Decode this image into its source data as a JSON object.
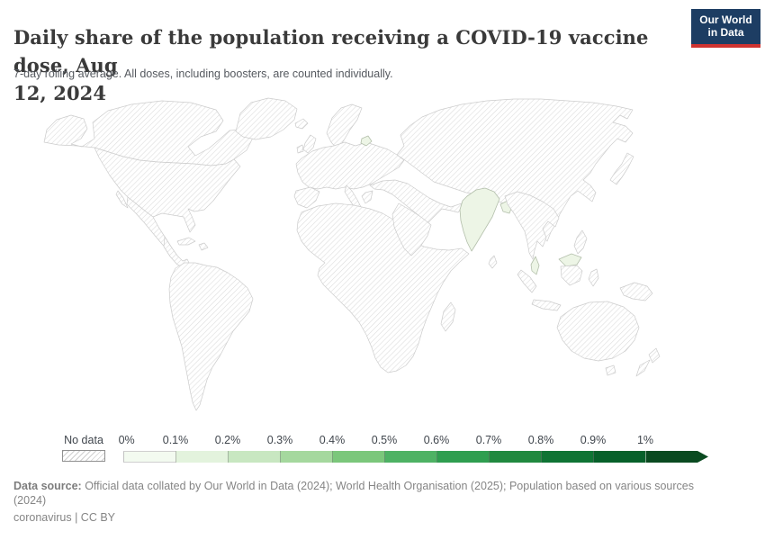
{
  "header": {
    "title_line1": "Daily share of the population receiving a COVID-19 vaccine dose, Aug",
    "title_line2": "12, 2024",
    "full_title": "Daily share of the population receiving a COVID-19 vaccine dose, Aug 12, 2024",
    "subtitle": "7-day rolling average. All doses, including boosters, are counted individually.",
    "logo": {
      "line1": "Our World",
      "line2": "in Data",
      "bg_color": "#1d3d63",
      "accent_color": "#cf3330"
    }
  },
  "legend": {
    "no_data_label": "No data",
    "tick_labels": [
      "0%",
      "0.1%",
      "0.2%",
      "0.3%",
      "0.4%",
      "0.5%",
      "0.6%",
      "0.7%",
      "0.8%",
      "0.9%",
      "1%"
    ],
    "segment_colors": [
      "#f3faf0",
      "#e3f3dd",
      "#c8e7c1",
      "#a5d89e",
      "#7bc77b",
      "#4eb264",
      "#2f9e50",
      "#20893f",
      "#0f7434",
      "#07602a",
      "#0a4a20"
    ]
  },
  "map": {
    "highlight_fill": "#edf5e6",
    "no_data_style": "diagonal-hatch"
  },
  "chart_data": {
    "type": "heatmap",
    "subtype": "world-choropleth-map",
    "title": "Daily share of the population receiving a COVID-19 vaccine dose, Aug 12, 2024",
    "date": "Aug 12, 2024",
    "unit": "%",
    "color_scale": {
      "bin_edges_percent": [
        0,
        0.1,
        0.2,
        0.3,
        0.4,
        0.5,
        0.6,
        0.7,
        0.8,
        0.9,
        1
      ],
      "open_ended_above": "1%",
      "colors": [
        "#f3faf0",
        "#e3f3dd",
        "#c8e7c1",
        "#a5d89e",
        "#7bc77b",
        "#4eb264",
        "#2f9e50",
        "#20893f",
        "#0f7434",
        "#07602a",
        "#0a4a20"
      ],
      "no_data": "hatched"
    },
    "entities_with_data": [
      {
        "name": "India",
        "value_bin": "0–0.1%"
      },
      {
        "name": "Bangladesh",
        "value_bin": "0–0.1%"
      },
      {
        "name": "Malaysia",
        "value_bin": "0–0.1%"
      },
      {
        "name": "Lithuania",
        "value_bin": "0–0.1%"
      }
    ],
    "all_other_entities": "No data",
    "legend_position": "bottom"
  },
  "footer": {
    "source_label": "Data source:",
    "source_text": " Official data collated by Our World in Data (2024); World Health Organisation (2025); Population based on various sources (2024)",
    "license": "coronavirus | CC BY"
  }
}
